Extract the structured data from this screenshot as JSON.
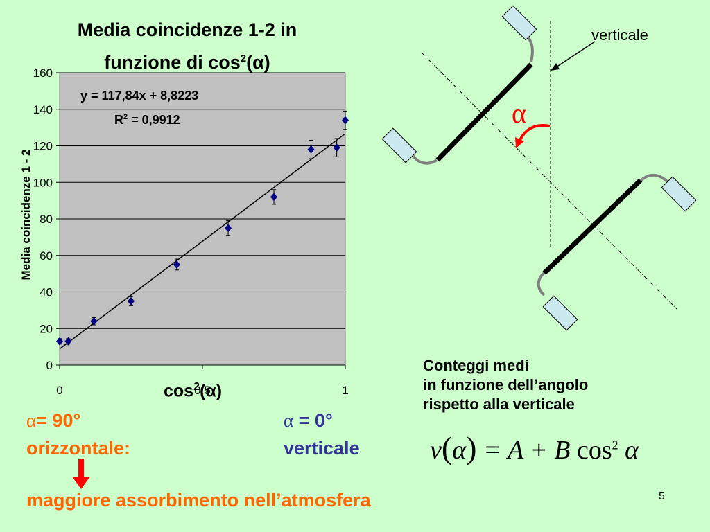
{
  "slide": {
    "page_number": "5",
    "alpha_90_line": "= 90°",
    "alpha_90_symbol": "α",
    "orizzontale": "orizzontale:",
    "alpha_0_symbol": "α",
    "alpha_0_line": " = 0°",
    "verticale_blue": "verticale",
    "absorption": "maggiore assorbimento nell’atmosfera",
    "caption_line1": "Conteggi medi",
    "caption_line2": "in funzione dell’angolo",
    "caption_line3": "rispetto alla verticale",
    "formula_lhs": "ν",
    "formula_arg": "α",
    "formula_eq": "= A + B",
    "formula_cos": "cos",
    "formula_exp": "2",
    "formula_tail": "α",
    "diagram_label_verticale": "verticale",
    "diagram_alpha": "α",
    "colors": {
      "background": "#ccffcc",
      "plot_area": "#c0c0c0",
      "marker": "#000080",
      "orange": "#ff6600",
      "blue": "#333399",
      "red": "#ff0000",
      "detector": "#cce8ef"
    }
  },
  "chart_data": {
    "type": "scatter",
    "title_line1": "Media coincidenze 1-2 in",
    "title_line2_main": "funzione di cos",
    "title_line2_sup": "2",
    "title_line2_tail": "(α)",
    "ylabel": "Media coincidenze 1 - 2",
    "xlabel_main": "cos",
    "xlabel_sup": "2",
    "xlabel_tail": "(α)",
    "xlim": [
      0,
      1
    ],
    "ylim": [
      0,
      160
    ],
    "xticks": [
      0,
      0.5,
      1
    ],
    "xtick_labels": [
      "0",
      "0,5",
      "1"
    ],
    "yticks": [
      0,
      20,
      40,
      60,
      80,
      100,
      120,
      140,
      160
    ],
    "grid": "horizontal",
    "trendline_equation": "y = 117,84x + 8,8223",
    "r2_main": "R",
    "r2_sup": "2",
    "r2_tail": " = 0,9912",
    "trendline": {
      "slope": 117.84,
      "intercept": 8.8223
    },
    "points": [
      {
        "x": 0.0,
        "y": 13,
        "err": 1.5
      },
      {
        "x": 0.03,
        "y": 13,
        "err": 1.5
      },
      {
        "x": 0.12,
        "y": 24,
        "err": 2
      },
      {
        "x": 0.25,
        "y": 35,
        "err": 2.5
      },
      {
        "x": 0.41,
        "y": 55,
        "err": 3
      },
      {
        "x": 0.59,
        "y": 75,
        "err": 4
      },
      {
        "x": 0.75,
        "y": 92,
        "err": 4
      },
      {
        "x": 0.88,
        "y": 118,
        "err": 5
      },
      {
        "x": 0.97,
        "y": 119,
        "err": 5
      },
      {
        "x": 1.0,
        "y": 134,
        "err": 5
      }
    ]
  }
}
